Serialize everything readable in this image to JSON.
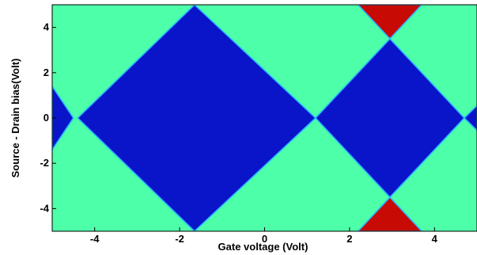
{
  "chart_data": {
    "type": "heatmap",
    "title": "",
    "xlabel": "Gate voltage (Volt)",
    "ylabel": "Source - Drain bias(Volt)",
    "xlim": [
      -5,
      5
    ],
    "ylim": [
      -5,
      5
    ],
    "xticks": [
      -4,
      -2,
      0,
      2,
      4
    ],
    "yticks": [
      -4,
      -2,
      0,
      2,
      4
    ],
    "xtick_labels": [
      "-4",
      "-2",
      "0",
      "2",
      "4"
    ],
    "ytick_labels": [
      "-4",
      "-2",
      "0",
      "2",
      "4"
    ],
    "grid": false,
    "legend": "none",
    "colors": {
      "background": "#4dffa8",
      "blockade": "#0a14c8",
      "double": "#c80a05",
      "edge": "#29b6ff"
    },
    "regions": [
      {
        "kind": "blockade",
        "vertices": [
          [
            -5.0,
            1.4
          ],
          [
            -4.5,
            0
          ],
          [
            -5.0,
            -1.4
          ]
        ]
      },
      {
        "kind": "blockade",
        "vertices": [
          [
            -1.65,
            5.0
          ],
          [
            -4.4,
            0
          ],
          [
            -1.65,
            -5.0
          ],
          [
            1.2,
            0
          ]
        ]
      },
      {
        "kind": "blockade",
        "vertices": [
          [
            2.95,
            3.5
          ],
          [
            1.2,
            0
          ],
          [
            2.95,
            -3.5
          ],
          [
            4.7,
            0
          ]
        ]
      },
      {
        "kind": "blockade",
        "vertices": [
          [
            5.0,
            0.55
          ],
          [
            4.7,
            0
          ],
          [
            5.0,
            -0.55
          ]
        ]
      },
      {
        "kind": "double",
        "vertices": [
          [
            2.2,
            5.0
          ],
          [
            3.7,
            5.0
          ],
          [
            2.95,
            3.5
          ]
        ]
      },
      {
        "kind": "double",
        "vertices": [
          [
            2.2,
            -5.0
          ],
          [
            3.7,
            -5.0
          ],
          [
            2.95,
            -3.5
          ]
        ]
      }
    ]
  }
}
